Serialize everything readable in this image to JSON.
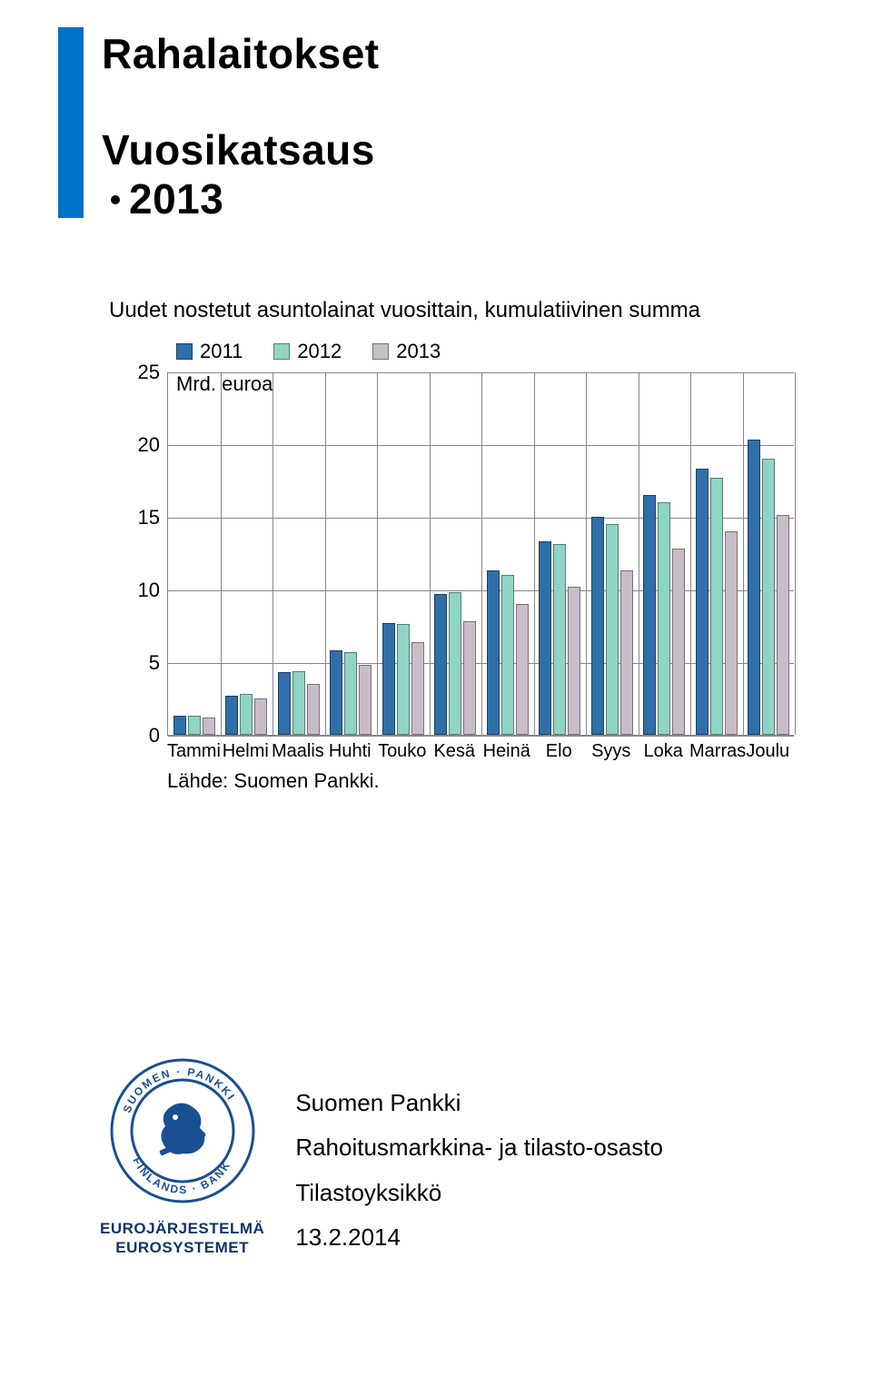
{
  "header": {
    "title_main": "Rahalaitokset",
    "title_sub_prefix": "Vuosikatsaus",
    "title_sub_year": "2013"
  },
  "chart": {
    "type": "grouped_bar",
    "title": "Uudet nostetut asuntolainat vuosittain, kumulatiivinen summa",
    "y_unit_label": "Mrd. euroa",
    "y_ticks": [
      "0",
      "5",
      "10",
      "15",
      "20",
      "25"
    ],
    "y_max": 25,
    "source_label": "Lähde: Suomen Pankki.",
    "background_color": "#ffffff",
    "grid_color": "#888888",
    "series": [
      {
        "name": "2011",
        "color": "#2f6fa8"
      },
      {
        "name": "2012",
        "color": "#8fd4c4"
      },
      {
        "name": "2013",
        "color": "#c9bcc9"
      }
    ],
    "categories": [
      "Tammi",
      "Helmi",
      "Maalis",
      "Huhti",
      "Touko",
      "Kesä",
      "Heinä",
      "Elo",
      "Syys",
      "Loka",
      "Marras",
      "Joulu"
    ],
    "data": {
      "2011": [
        1.3,
        2.7,
        4.3,
        5.8,
        7.7,
        9.7,
        11.3,
        13.3,
        15.0,
        16.5,
        18.3,
        20.3
      ],
      "2012": [
        1.3,
        2.8,
        4.4,
        5.7,
        7.6,
        9.8,
        11.0,
        13.1,
        14.5,
        16.0,
        17.7,
        19.0
      ],
      "2013": [
        1.2,
        2.5,
        3.5,
        4.8,
        6.4,
        7.8,
        9.0,
        10.2,
        11.3,
        12.8,
        14.0,
        15.1
      ]
    }
  },
  "footer": {
    "logo_text_line1": "EUROJÄRJESTELMÄ",
    "logo_text_line2": "EUROSYSTEMET",
    "logo_primary": "#1a4f91",
    "org_line1": "Suomen Pankki",
    "org_line2": "Rahoitusmarkkina- ja tilasto-osasto",
    "org_line3": "Tilastoyksikkö",
    "date": "13.2.2014"
  }
}
